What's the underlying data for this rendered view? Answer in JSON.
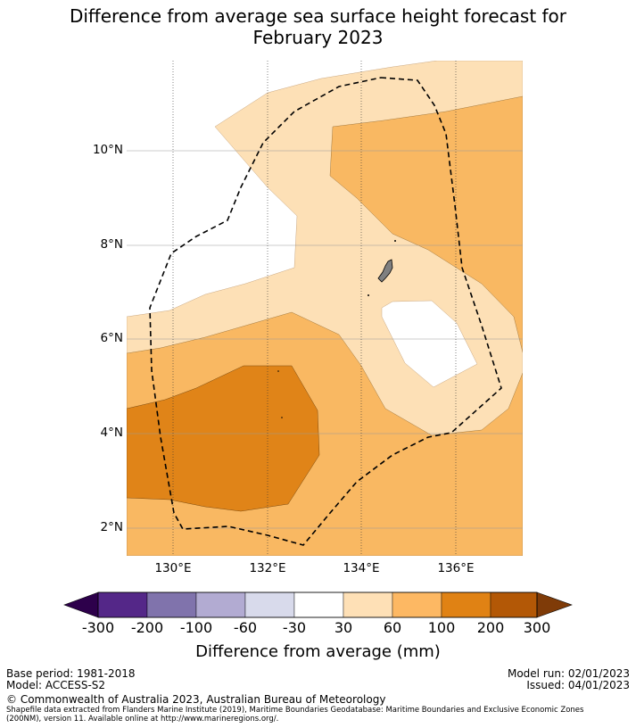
{
  "title": {
    "line1": "Difference from average sea surface height forecast for",
    "line2": "February 2023"
  },
  "map": {
    "lat_labels": [
      "10°N",
      "8°N",
      "6°N",
      "4°N",
      "2°N"
    ],
    "lon_labels": [
      "130°E",
      "132°E",
      "134°E",
      "136°E"
    ],
    "colors": {
      "c30_60": "#fde0b6",
      "c60_100": "#f9b862",
      "c100_200": "#e08418",
      "land": "#808080"
    }
  },
  "colorbar": {
    "ticks": [
      "-300",
      "-200",
      "-100",
      "-60",
      "-30",
      "30",
      "60",
      "100",
      "200",
      "300"
    ],
    "label": "Difference from average (mm)",
    "colors": [
      "#2d004b",
      "#542788",
      "#8073ac",
      "#b2abd2",
      "#d8daeb",
      "#ffffff",
      "#fee0b6",
      "#fdb863",
      "#e08214",
      "#b35806",
      "#7f3b08"
    ]
  },
  "footer": {
    "base_period": "Base period: 1981-2018",
    "model": "Model: ACCESS-S2",
    "model_run": "Model run: 02/01/2023",
    "issued": "Issued: 04/01/2023",
    "copyright": "© Commonwealth of Australia 2023, Australian Bureau of Meteorology",
    "shapefile_line1": "Shapefile data extracted from Flanders Marine Institute (2019), Maritime Boundaries Geodatabase: Maritime Boundaries and Exclusive Economic Zones",
    "shapefile_line2": "(200NM), version 11. Available online at http://www.marineregions.org/."
  }
}
